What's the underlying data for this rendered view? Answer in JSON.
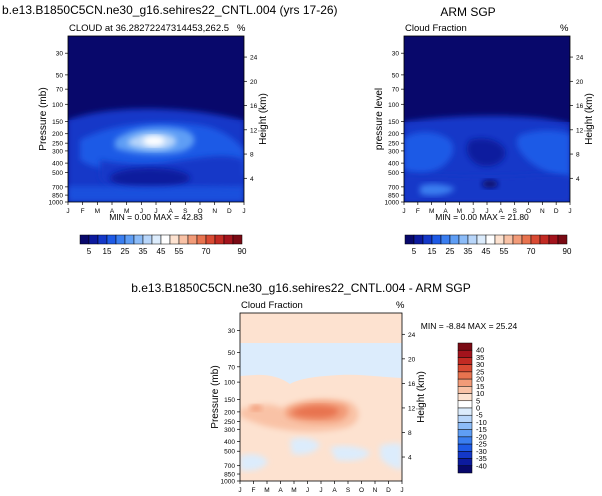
{
  "chart_data": [
    {
      "type": "heatmap",
      "title": "b.e13.B1850C5CN.ne30_g16.sehires22_CNTL.004 (yrs 17-26)",
      "subtitle_left": "CLOUD at 36.28272247314453,262.5",
      "subtitle_right": "%",
      "xlabel": "",
      "ylabel": "Pressure (mb)",
      "ylabel_right": "Height (km)",
      "x_ticks": [
        "J",
        "F",
        "M",
        "A",
        "M",
        "J",
        "J",
        "A",
        "S",
        "O",
        "N",
        "D",
        "J"
      ],
      "y_ticks": [
        30,
        50,
        70,
        100,
        150,
        200,
        250,
        300,
        400,
        500,
        700,
        850,
        1000
      ],
      "height_ticks": [
        24,
        20,
        16,
        12,
        8,
        4
      ],
      "ylim": [
        1000,
        20
      ],
      "stats": "MIN =   0.00 MAX =  42.83",
      "colorbar_levels": [
        5,
        10,
        15,
        20,
        25,
        30,
        35,
        40,
        45,
        50,
        55,
        60,
        65,
        70,
        75,
        80,
        85,
        90
      ],
      "colorbar_labels": [
        5,
        15,
        25,
        35,
        45,
        55,
        70,
        90
      ],
      "colorbar_colors": [
        "#08086b",
        "#0c1a9e",
        "#1438c8",
        "#1e5ae6",
        "#3a7ef0",
        "#5f9ef5",
        "#8cbcf8",
        "#b8d6fa",
        "#dcecfc",
        "#ffffff",
        "#fde2d0",
        "#f9c2a6",
        "#f29b78",
        "#e8734f",
        "#d94a33",
        "#c22a23",
        "#a3131c",
        "#7a0a14"
      ],
      "min": 0.0,
      "max": 42.83
    },
    {
      "type": "heatmap",
      "title": "ARM SGP",
      "subtitle_left": "Cloud Fraction",
      "subtitle_right": "%",
      "xlabel": "",
      "ylabel": "pressure level",
      "ylabel_right": "Height (km)",
      "x_ticks": [
        "J",
        "F",
        "M",
        "A",
        "M",
        "J",
        "J",
        "A",
        "S",
        "O",
        "N",
        "D",
        "J"
      ],
      "y_ticks": [
        30,
        50,
        70,
        100,
        150,
        200,
        250,
        300,
        400,
        500,
        700,
        850,
        1000
      ],
      "height_ticks": [
        24,
        20,
        16,
        12,
        8,
        4
      ],
      "ylim": [
        1000,
        20
      ],
      "stats": "MIN =   0.00 MAX =  21.80",
      "colorbar_levels": [
        5,
        10,
        15,
        20,
        25,
        30,
        35,
        40,
        45,
        50,
        55,
        60,
        65,
        70,
        75,
        80,
        85,
        90
      ],
      "colorbar_labels": [
        5,
        15,
        25,
        35,
        45,
        55,
        70,
        90
      ],
      "min": 0.0,
      "max": 21.8
    },
    {
      "type": "heatmap",
      "title": "b.e13.B1850C5CN.ne30_g16.sehires22_CNTL.004 - ARM SGP",
      "subtitle_left": "Cloud Fraction",
      "subtitle_right": "%",
      "xlabel": "",
      "ylabel": "Pressure (mb)",
      "ylabel_right": "Height (km)",
      "x_ticks": [
        "J",
        "F",
        "M",
        "A",
        "M",
        "J",
        "J",
        "A",
        "S",
        "O",
        "N",
        "D",
        "J"
      ],
      "y_ticks": [
        30,
        50,
        70,
        100,
        150,
        200,
        250,
        300,
        400,
        500,
        700,
        850,
        1000
      ],
      "height_ticks": [
        24,
        20,
        16,
        12,
        8,
        4
      ],
      "ylim": [
        1000,
        20
      ],
      "stats": "MIN =  -8.84 MAX =  25.24",
      "colorbar_levels": [
        40,
        35,
        30,
        25,
        20,
        15,
        10,
        5,
        0,
        -5,
        -10,
        -15,
        -20,
        -25,
        -30,
        -35,
        -40
      ],
      "colorbar_colors": [
        "#7a0a14",
        "#a3131c",
        "#c22a23",
        "#d94a33",
        "#e8734f",
        "#f29b78",
        "#f9c2a6",
        "#fde2d0",
        "#ffffff",
        "#dcecfc",
        "#b8d6fa",
        "#8cbcf8",
        "#5f9ef5",
        "#3a7ef0",
        "#1e5ae6",
        "#1438c8",
        "#0c1a9e",
        "#08086b"
      ],
      "min": -8.84,
      "max": 25.24
    }
  ]
}
